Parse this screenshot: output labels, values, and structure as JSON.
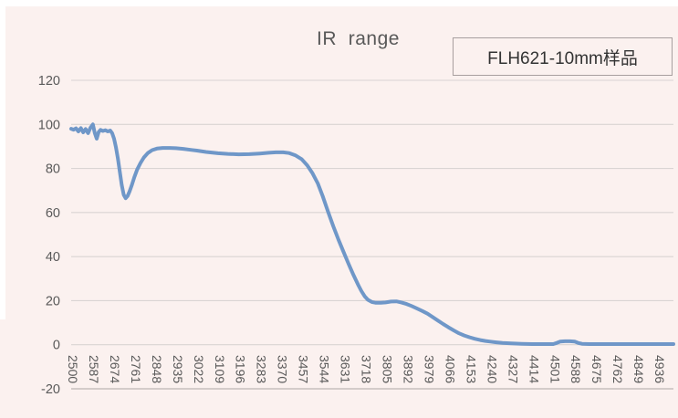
{
  "title": "IR  range",
  "legend": {
    "label": "FLH621-10mm样品"
  },
  "colors": {
    "background": "#fbf1ef",
    "line": "#6f97c8",
    "gridline": "#dad4d3",
    "axis_line": "#c7bfbe",
    "tick_text": "#595959",
    "title_text": "#595959",
    "legend_border": "#a89f9f",
    "legend_text": "#333333"
  },
  "chart_data": {
    "type": "line",
    "title": "IR  range",
    "series": [
      {
        "name": "FLH621-10mm样品"
      }
    ],
    "xlabel": "",
    "ylabel": "",
    "xlim": [
      2500,
      5000
    ],
    "ylim": [
      -20,
      120
    ],
    "grid": true,
    "legend_position": "top-right",
    "x_tick_labels": [
      "2500",
      "2587",
      "2674",
      "2761",
      "2848",
      "2935",
      "3022",
      "3109",
      "3196",
      "3283",
      "3370",
      "3457",
      "3544",
      "3631",
      "3718",
      "3805",
      "3892",
      "3979",
      "4066",
      "4153",
      "4240",
      "4327",
      "4414",
      "4501",
      "4588",
      "4675",
      "4762",
      "4849",
      "4936"
    ],
    "x_tick_start": 2500,
    "x_tick_step": 87,
    "y_ticks": [
      120,
      100,
      80,
      60,
      40,
      20,
      0,
      -20
    ],
    "points": [
      [
        2500,
        98
      ],
      [
        2510,
        97.6
      ],
      [
        2520,
        98.2
      ],
      [
        2530,
        96.8
      ],
      [
        2540,
        98.3
      ],
      [
        2550,
        96.4
      ],
      [
        2560,
        97.9
      ],
      [
        2570,
        96.0
      ],
      [
        2580,
        98.5
      ],
      [
        2590,
        100.0
      ],
      [
        2598,
        96.0
      ],
      [
        2606,
        93.5
      ],
      [
        2614,
        96.5
      ],
      [
        2622,
        97.5
      ],
      [
        2632,
        97.0
      ],
      [
        2642,
        97.4
      ],
      [
        2652,
        96.8
      ],
      [
        2662,
        97.2
      ],
      [
        2670,
        96.0
      ],
      [
        2678,
        93.5
      ],
      [
        2686,
        89.5
      ],
      [
        2694,
        84.5
      ],
      [
        2702,
        78.5
      ],
      [
        2710,
        72.5
      ],
      [
        2718,
        68.0
      ],
      [
        2726,
        66.5
      ],
      [
        2734,
        67.5
      ],
      [
        2742,
        69.5
      ],
      [
        2752,
        72.5
      ],
      [
        2762,
        76.0
      ],
      [
        2774,
        79.5
      ],
      [
        2788,
        82.5
      ],
      [
        2802,
        85.0
      ],
      [
        2818,
        87.0
      ],
      [
        2836,
        88.3
      ],
      [
        2856,
        89.0
      ],
      [
        2880,
        89.3
      ],
      [
        2910,
        89.3
      ],
      [
        2935,
        89.2
      ],
      [
        2965,
        88.9
      ],
      [
        3000,
        88.4
      ],
      [
        3022,
        88.1
      ],
      [
        3060,
        87.5
      ],
      [
        3109,
        86.9
      ],
      [
        3150,
        86.6
      ],
      [
        3196,
        86.4
      ],
      [
        3240,
        86.5
      ],
      [
        3283,
        86.8
      ],
      [
        3320,
        87.1
      ],
      [
        3350,
        87.3
      ],
      [
        3380,
        87.3
      ],
      [
        3405,
        87.0
      ],
      [
        3430,
        86.0
      ],
      [
        3457,
        84.2
      ],
      [
        3480,
        81.4
      ],
      [
        3502,
        77.8
      ],
      [
        3524,
        73.2
      ],
      [
        3544,
        67.5
      ],
      [
        3566,
        60.5
      ],
      [
        3588,
        53.8
      ],
      [
        3610,
        47.6
      ],
      [
        3631,
        42.0
      ],
      [
        3652,
        36.6
      ],
      [
        3672,
        31.6
      ],
      [
        3692,
        27.0
      ],
      [
        3705,
        24.3
      ],
      [
        3718,
        22.0
      ],
      [
        3732,
        20.4
      ],
      [
        3748,
        19.4
      ],
      [
        3765,
        19.0
      ],
      [
        3785,
        19.0
      ],
      [
        3805,
        19.2
      ],
      [
        3828,
        19.6
      ],
      [
        3850,
        19.7
      ],
      [
        3871,
        19.2
      ],
      [
        3892,
        18.5
      ],
      [
        3912,
        17.6
      ],
      [
        3935,
        16.5
      ],
      [
        3958,
        15.3
      ],
      [
        3979,
        14.1
      ],
      [
        4000,
        12.6
      ],
      [
        4022,
        11.0
      ],
      [
        4044,
        9.4
      ],
      [
        4066,
        7.9
      ],
      [
        4088,
        6.5
      ],
      [
        4110,
        5.2
      ],
      [
        4132,
        4.2
      ],
      [
        4153,
        3.4
      ],
      [
        4175,
        2.7
      ],
      [
        4198,
        2.1
      ],
      [
        4220,
        1.7
      ],
      [
        4240,
        1.4
      ],
      [
        4265,
        1.1
      ],
      [
        4290,
        0.8
      ],
      [
        4327,
        0.6
      ],
      [
        4370,
        0.4
      ],
      [
        4414,
        0.3
      ],
      [
        4460,
        0.3
      ],
      [
        4501,
        0.3
      ],
      [
        4515,
        0.8
      ],
      [
        4530,
        1.4
      ],
      [
        4550,
        1.6
      ],
      [
        4570,
        1.6
      ],
      [
        4590,
        1.4
      ],
      [
        4605,
        0.8
      ],
      [
        4620,
        0.4
      ],
      [
        4650,
        0.3
      ],
      [
        4675,
        0.3
      ],
      [
        4720,
        0.3
      ],
      [
        4762,
        0.3
      ],
      [
        4805,
        0.3
      ],
      [
        4849,
        0.3
      ],
      [
        4890,
        0.3
      ],
      [
        4936,
        0.3
      ],
      [
        4970,
        0.3
      ],
      [
        5000,
        0.3
      ]
    ]
  }
}
